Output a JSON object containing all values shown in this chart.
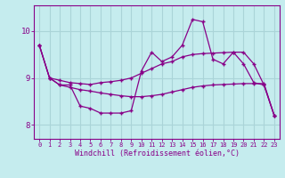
{
  "xlabel": "Windchill (Refroidissement éolien,°C)",
  "background_color": "#c5ecee",
  "line_color": "#880088",
  "grid_color": "#aad4d8",
  "xlim": [
    -0.5,
    23.5
  ],
  "ylim": [
    7.7,
    10.55
  ],
  "yticks": [
    8,
    9,
    10
  ],
  "xticks": [
    0,
    1,
    2,
    3,
    4,
    5,
    6,
    7,
    8,
    9,
    10,
    11,
    12,
    13,
    14,
    15,
    16,
    17,
    18,
    19,
    20,
    21,
    22,
    23
  ],
  "line1_x": [
    0,
    1,
    2,
    3,
    4,
    5,
    6,
    7,
    8,
    9,
    10,
    11,
    12,
    13,
    14,
    15,
    16,
    17,
    18,
    19,
    20,
    21,
    22,
    23
  ],
  "line1_y": [
    9.7,
    9.0,
    8.85,
    8.85,
    8.4,
    8.35,
    8.25,
    8.25,
    8.25,
    8.3,
    9.15,
    9.55,
    9.35,
    9.45,
    9.7,
    10.25,
    10.2,
    9.4,
    9.3,
    9.55,
    9.3,
    8.9,
    8.85,
    8.2
  ],
  "line2_x": [
    0,
    1,
    2,
    3,
    4,
    5,
    6,
    7,
    8,
    9,
    10,
    11,
    12,
    13,
    14,
    15,
    16,
    17,
    18,
    19,
    20,
    21,
    22,
    23
  ],
  "line2_y": [
    9.7,
    9.0,
    8.95,
    8.9,
    8.88,
    8.86,
    8.9,
    8.92,
    8.95,
    9.0,
    9.1,
    9.2,
    9.3,
    9.35,
    9.45,
    9.5,
    9.52,
    9.53,
    9.54,
    9.55,
    9.55,
    9.3,
    8.85,
    8.2
  ],
  "line3_x": [
    0,
    1,
    2,
    3,
    4,
    5,
    6,
    7,
    8,
    9,
    10,
    11,
    12,
    13,
    14,
    15,
    16,
    17,
    18,
    19,
    20,
    21,
    22,
    23
  ],
  "line3_y": [
    9.7,
    9.0,
    8.85,
    8.8,
    8.75,
    8.72,
    8.68,
    8.65,
    8.62,
    8.6,
    8.6,
    8.62,
    8.65,
    8.7,
    8.75,
    8.8,
    8.83,
    8.85,
    8.86,
    8.87,
    8.88,
    8.88,
    8.88,
    8.2
  ]
}
